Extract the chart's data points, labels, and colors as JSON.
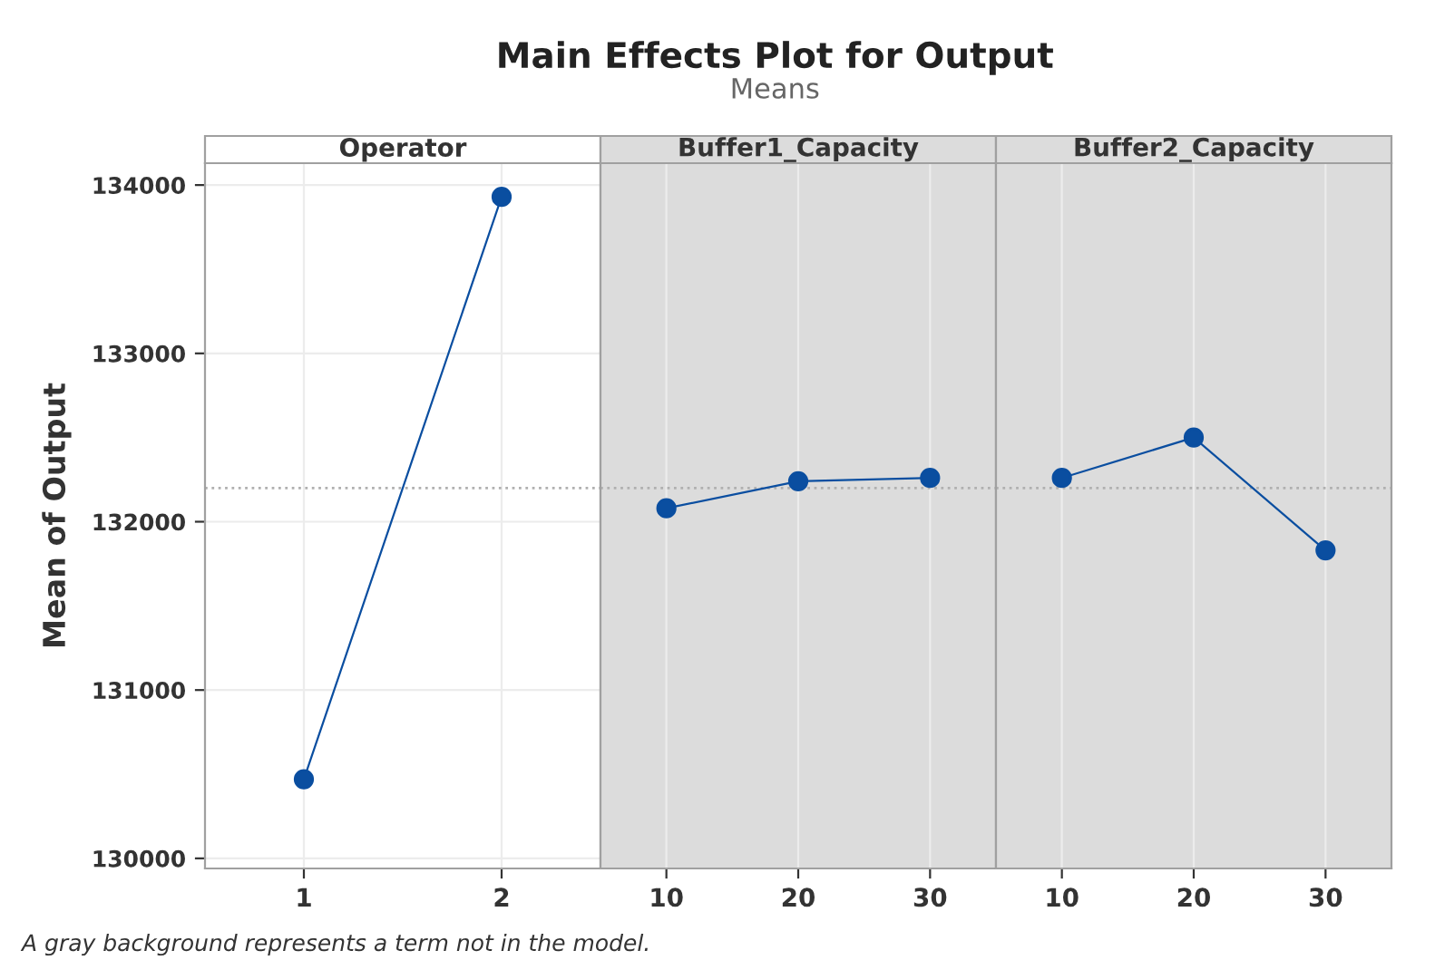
{
  "chart_data": [
    {
      "type": "line",
      "xlabel": "Operator",
      "ylabel": "Mean of Output",
      "categories": [
        "1",
        "2"
      ],
      "series": [
        {
          "color": "#0a4ea0",
          "values": [
            130470,
            133930
          ]
        }
      ],
      "ylim": [
        129940,
        134130
      ],
      "yticks": [
        130000,
        131000,
        132000,
        133000,
        134000
      ],
      "grid": true,
      "marker": "circle",
      "line_style": "solid",
      "ref_lines": [
        {
          "axis": "y",
          "value": 132200,
          "color": "#b0b0b0",
          "line_style": "dotted"
        }
      ],
      "annotations": [
        "A gray background represents a term not in the model."
      ]
    },
    {
      "type": "line",
      "title": "Main Effects Plot for Output",
      "subtitle": "Means",
      "xlabel": "Buffer1_Capacity",
      "categories": [
        "10",
        "20",
        "30"
      ],
      "series": [
        {
          "color": "#0a4ea0",
          "values": [
            132080,
            132240,
            132260
          ]
        }
      ],
      "ylim": [
        129940,
        134130
      ],
      "tick_labels": "x",
      "grid": true,
      "marker": "circle",
      "line_style": "solid",
      "ref_lines": [
        {
          "axis": "y",
          "value": 132200,
          "color": "#b0b0b0",
          "line_style": "dotted"
        }
      ],
      "bands": [
        {
          "axis": "y",
          "from": 129940,
          "to": 134130,
          "color": "#dcdcdc"
        }
      ]
    },
    {
      "type": "line",
      "xlabel": "Buffer2_Capacity",
      "categories": [
        "10",
        "20",
        "30"
      ],
      "series": [
        {
          "color": "#0a4ea0",
          "values": [
            132260,
            132500,
            131830
          ]
        }
      ],
      "ylim": [
        129940,
        134130
      ],
      "tick_labels": "x",
      "grid": true,
      "marker": "circle",
      "line_style": "solid",
      "ref_lines": [
        {
          "axis": "y",
          "value": 132200,
          "color": "#b0b0b0",
          "line_style": "dotted"
        }
      ],
      "bands": [
        {
          "axis": "y",
          "from": 129940,
          "to": 134130,
          "color": "#dcdcdc"
        }
      ]
    }
  ]
}
